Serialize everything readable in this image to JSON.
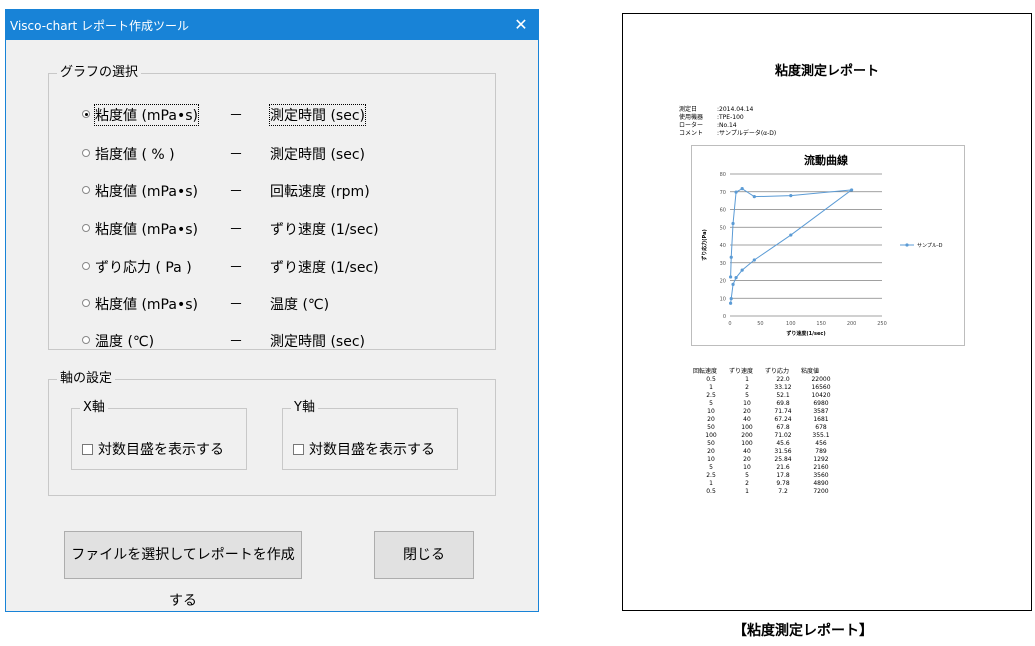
{
  "dialog": {
    "title": "Visco-chart レポート作成ツール",
    "close_glyph": "✕",
    "graph_group": {
      "legend": "グラフの選択",
      "options": [
        {
          "label": "粘度値 (mPa•s)",
          "dash": "－",
          "unit": "測定時間 (sec)",
          "selected": true
        },
        {
          "label": "指度値 ( % )",
          "dash": "－",
          "unit": "測定時間 (sec)",
          "selected": false
        },
        {
          "label": "粘度値 (mPa•s)",
          "dash": "－",
          "unit": "回転速度 (rpm)",
          "selected": false
        },
        {
          "label": "粘度値 (mPa•s)",
          "dash": "－",
          "unit": "ずり速度 (1/sec)",
          "selected": false
        },
        {
          "label": "ずり応力 ( Pa )",
          "dash": "－",
          "unit": "ずり速度 (1/sec)",
          "selected": false
        },
        {
          "label": "粘度値 (mPa•s)",
          "dash": "－",
          "unit": "温度 (℃)",
          "selected": false
        },
        {
          "label": "温度 (℃)",
          "dash": "－",
          "unit": "測定時間 (sec)",
          "selected": false
        }
      ]
    },
    "axis_group": {
      "legend": "軸の設定",
      "x_legend": "X軸",
      "y_legend": "Y軸",
      "x_log_label": "対数目盛を表示する",
      "y_log_label": "対数目盛を表示する",
      "x_log_checked": false,
      "y_log_checked": false
    },
    "report_button": "ファイルを選択してレポートを作成する",
    "close_button": "閉じる"
  },
  "report": {
    "title": "粘度測定レポート",
    "meta": [
      {
        "key": "測定日",
        "value": ":2014.04.14"
      },
      {
        "key": "使用機器",
        "value": ":TPE-100"
      },
      {
        "key": "ローター",
        "value": ":No.14"
      },
      {
        "key": "コメント",
        "value": ":サンプルデータ(α-D)"
      }
    ],
    "table": {
      "headers": [
        "回転速度",
        "ずり速度",
        "ずり応力",
        "粘度値"
      ],
      "rows": [
        [
          "0.5",
          "1",
          "22.0",
          "22000"
        ],
        [
          "1",
          "2",
          "33.12",
          "16560"
        ],
        [
          "2.5",
          "5",
          "52.1",
          "10420"
        ],
        [
          "5",
          "10",
          "69.8",
          "6980"
        ],
        [
          "10",
          "20",
          "71.74",
          "3587"
        ],
        [
          "20",
          "40",
          "67.24",
          "1681"
        ],
        [
          "50",
          "100",
          "67.8",
          "678"
        ],
        [
          "100",
          "200",
          "71.02",
          "355.1"
        ],
        [
          "50",
          "100",
          "45.6",
          "456"
        ],
        [
          "20",
          "40",
          "31.56",
          "789"
        ],
        [
          "10",
          "20",
          "25.84",
          "1292"
        ],
        [
          "5",
          "10",
          "21.6",
          "2160"
        ],
        [
          "2.5",
          "5",
          "17.8",
          "3560"
        ],
        [
          "1",
          "2",
          "9.78",
          "4890"
        ],
        [
          "0.5",
          "1",
          "7.2",
          "7200"
        ]
      ]
    },
    "caption": "【粘度測定レポート】"
  },
  "chart_data": {
    "type": "scatter",
    "title": "流動曲線",
    "xlabel": "ずり速度(1/sec)",
    "ylabel": "ずり応力(Pa)",
    "xlim": [
      0,
      250
    ],
    "ylim": [
      0,
      80
    ],
    "xticks": [
      "0",
      "50",
      "100",
      "150",
      "200",
      "250"
    ],
    "yticks": [
      "0",
      "10",
      "20",
      "30",
      "40",
      "50",
      "60",
      "70",
      "80"
    ],
    "series": [
      {
        "name": "サンプル-D",
        "color": "#5b9bd5",
        "x": [
          1,
          2,
          5,
          10,
          20,
          40,
          100,
          200,
          100,
          40,
          20,
          10,
          5,
          2,
          1
        ],
        "y": [
          22.0,
          33.12,
          52.1,
          69.8,
          71.74,
          67.24,
          67.8,
          71.02,
          45.6,
          31.56,
          25.84,
          21.6,
          17.8,
          9.78,
          7.2
        ]
      }
    ],
    "grid": true,
    "legend": "right"
  }
}
